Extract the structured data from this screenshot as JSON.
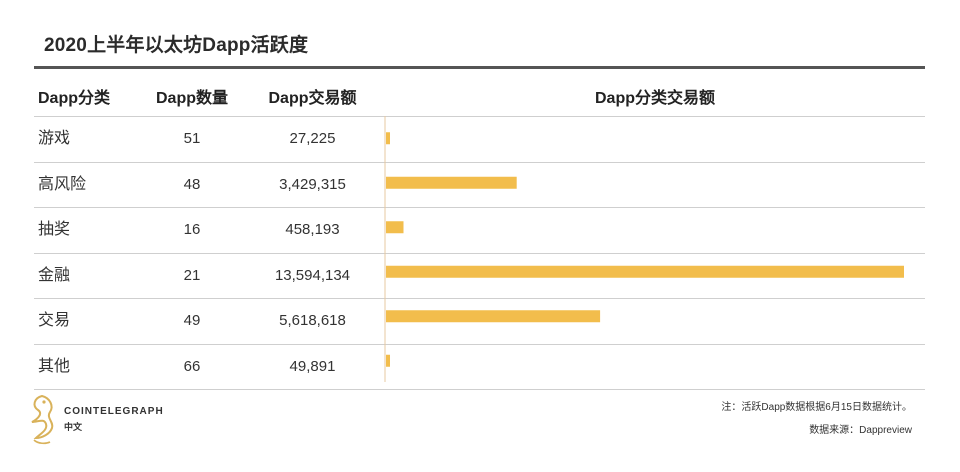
{
  "title": "2020上半年以太坊Dapp活跃度",
  "headers": {
    "category": "Dapp分类",
    "count": "Dapp数量",
    "volume": "Dapp交易额",
    "chart": "Dapp分类交易额"
  },
  "rows": [
    {
      "category": "游戏",
      "count": "51",
      "volume": "27,225"
    },
    {
      "category": "高风险",
      "count": "48",
      "volume": "3,429,315"
    },
    {
      "category": "抽奖",
      "count": "16",
      "volume": "458,193"
    },
    {
      "category": "金融",
      "count": "21",
      "volume": "13,594,134"
    },
    {
      "category": "交易",
      "count": "49",
      "volume": "5,618,618"
    },
    {
      "category": "其他",
      "count": "66",
      "volume": "49,891"
    }
  ],
  "chart_data": {
    "type": "bar",
    "orientation": "horizontal",
    "categories": [
      "游戏",
      "高风险",
      "抽奖",
      "金融",
      "交易",
      "其他"
    ],
    "values": [
      27225,
      3429315,
      458193,
      13594134,
      5618618,
      49891
    ],
    "title": "Dapp分类交易额",
    "bar_color": "#f2bd4c",
    "axis_color": "#e7c9a1"
  },
  "footer": {
    "note": "注：活跃Dapp数据根据6月15日数据统计。",
    "source": "数据来源：Dappreview"
  },
  "logo": {
    "name": "COINTELEGRAPH",
    "sub": "中文"
  },
  "colors": {
    "accent": "#f2bd4c",
    "rule": "#555555",
    "divider": "#cfcfcf",
    "logo_gold": "#d9b25a"
  }
}
